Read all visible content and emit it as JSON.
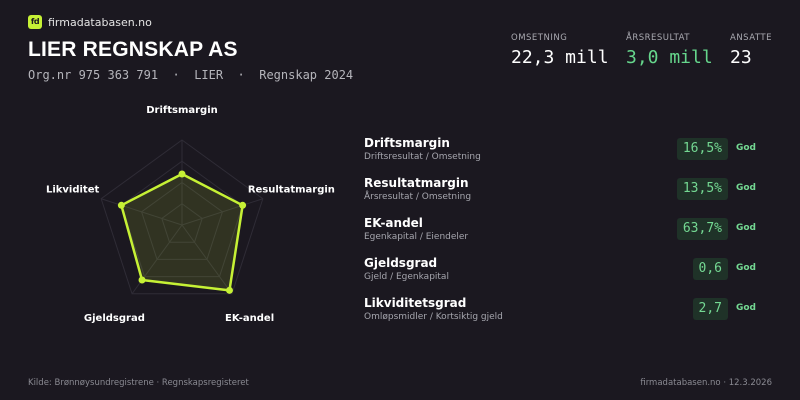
{
  "brand": {
    "logo_text": "fd",
    "name": "firmadatabasen.no"
  },
  "company": {
    "name": "LIER REGNSKAP AS",
    "orgnr": "Org.nr 975 363 791",
    "sep1": "·",
    "city": "LIER",
    "sep2": "·",
    "year_label": "Regnskap 2024"
  },
  "stats": [
    {
      "label": "OMSETNING",
      "value": "22,3 mill",
      "color": "#ffffff"
    },
    {
      "label": "ÅRSRESULTAT",
      "value": "3,0 mill",
      "color": "#66d68c"
    },
    {
      "label": "ANSATTE",
      "value": "23",
      "color": "#ffffff"
    }
  ],
  "colors": {
    "background": "#1b1820",
    "accent": "#c6f135",
    "good": "#74d993",
    "grid": "#2f2c36"
  },
  "chart_data": {
    "type": "radar",
    "axes": [
      "Driftsmargin",
      "Resultatmargin",
      "EK-andel",
      "Gjeldsgrad",
      "Likviditet"
    ],
    "values": [
      0.6,
      0.75,
      0.95,
      0.8,
      0.75
    ],
    "range": [
      0,
      1
    ],
    "grid_levels": 4
  },
  "metrics": [
    {
      "name": "Driftsmargin",
      "formula": "Driftsresultat / Omsetning",
      "value": "16,5%",
      "rating": "God"
    },
    {
      "name": "Resultatmargin",
      "formula": "Årsresultat / Omsetning",
      "value": "13,5%",
      "rating": "God"
    },
    {
      "name": "EK-andel",
      "formula": "Egenkapital / Eiendeler",
      "value": "63,7%",
      "rating": "God"
    },
    {
      "name": "Gjeldsgrad",
      "formula": "Gjeld / Egenkapital",
      "value": "0,6",
      "rating": "God"
    },
    {
      "name": "Likviditetsgrad",
      "formula": "Omløpsmidler / Kortsiktig gjeld",
      "value": "2,7",
      "rating": "God"
    }
  ],
  "footer": {
    "source": "Kilde: Brønnøysundregistrene · Regnskapsregisteret",
    "site_date": "firmadatabasen.no · 12.3.2026"
  }
}
